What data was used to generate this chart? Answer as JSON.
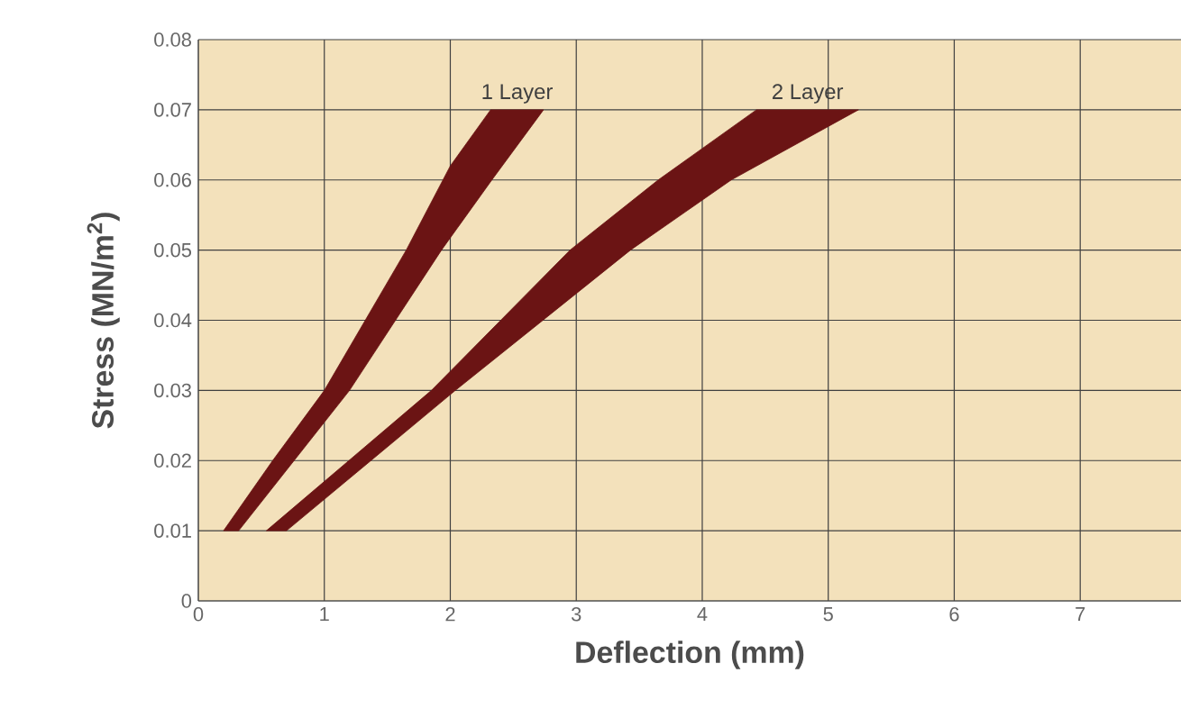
{
  "chart_data": {
    "type": "area",
    "xlabel": "Deflection (mm)",
    "ylabel": "Stress (MN/m$^{2}$)",
    "xlim": [
      0,
      7.8
    ],
    "ylim": [
      0,
      0.08
    ],
    "xticks": [
      0,
      1,
      2,
      3,
      4,
      5,
      6,
      7
    ],
    "yticks": [
      0,
      0.01,
      0.02,
      0.03,
      0.04,
      0.05,
      0.06,
      0.07,
      0.08
    ],
    "grid": true,
    "series": [
      {
        "name": "1 Layer",
        "color": "#6b1414",
        "x": [
          0.2,
          0.59,
          1.0,
          1.65,
          2.0,
          2.32,
          2.74,
          2.33,
          1.93,
          1.2,
          0.76,
          0.32
        ],
        "values": [
          0.01,
          0.02,
          0.03,
          0.05,
          0.062,
          0.07,
          0.07,
          0.06,
          0.05,
          0.03,
          0.02,
          0.01
        ]
      },
      {
        "name": "2 Layer",
        "color": "#6b1414",
        "x": [
          0.54,
          1.85,
          2.95,
          3.65,
          4.43,
          5.24,
          4.23,
          3.43,
          2.04,
          0.7
        ],
        "values": [
          0.01,
          0.03,
          0.05,
          0.06,
          0.07,
          0.07,
          0.06,
          0.05,
          0.03,
          0.01
        ]
      }
    ]
  }
}
